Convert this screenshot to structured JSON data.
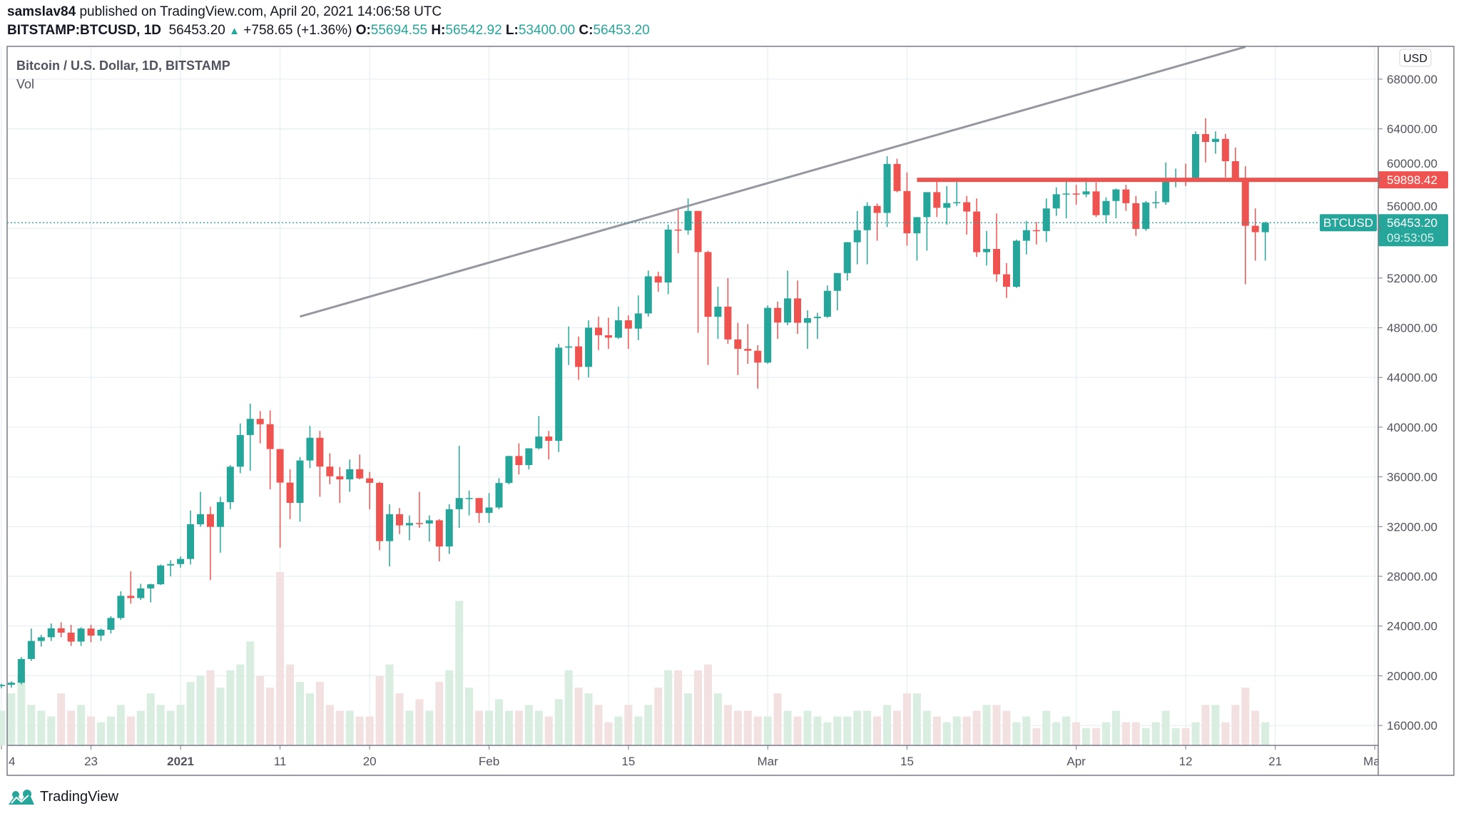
{
  "header": {
    "author": "samslav84",
    "published": "published on TradingView.com, April 20, 2021 14:06:58 UTC",
    "symbol": "BITSTAMP:BTCUSD, 1D",
    "last": "56453.20",
    "change": "+758.65 (+1.36%)",
    "o_label": "O:",
    "o": "55694.55",
    "h_label": "H:",
    "h": "56542.92",
    "l_label": "L:",
    "l": "53400.00",
    "c_label": "C:",
    "c": "56453.20"
  },
  "legend": {
    "title": "Bitcoin / U.S. Dollar, 1D, BITSTAMP",
    "vol": "Vol"
  },
  "brand": "TradingView",
  "colors": {
    "up": "#26a69a",
    "down": "#ef5350",
    "vol_up": "#d9eee0",
    "vol_down": "#f3e0e0",
    "trendline": "#9598a1",
    "grid": "#e8eff3"
  },
  "chart_data": {
    "type": "candlestick",
    "title": "Bitcoin / U.S. Dollar, 1D, BITSTAMP",
    "currency": "USD",
    "ylim": [
      14000,
      70000
    ],
    "y_ticks": [
      "68000.00",
      "64000.00",
      "60000.00",
      "56000.00",
      "52000.00",
      "48000.00",
      "44000.00",
      "40000.00",
      "36000.00",
      "32000.00",
      "28000.00",
      "24000.00",
      "20000.00",
      "16000.00"
    ],
    "x_ticks": [
      {
        "date": "2020-12-14",
        "label": "4"
      },
      {
        "date": "2020-12-23",
        "label": "23"
      },
      {
        "date": "2021-01-01",
        "label": "2021",
        "bold": true
      },
      {
        "date": "2021-01-11",
        "label": "11"
      },
      {
        "date": "2021-01-20",
        "label": "20"
      },
      {
        "date": "2021-02-01",
        "label": "Feb"
      },
      {
        "date": "2021-02-15",
        "label": "15"
      },
      {
        "date": "2021-03-01",
        "label": "Mar"
      },
      {
        "date": "2021-03-15",
        "label": "15"
      },
      {
        "date": "2021-04-01",
        "label": "Apr"
      },
      {
        "date": "2021-04-12",
        "label": "12"
      },
      {
        "date": "2021-04-21",
        "label": "21"
      },
      {
        "date": "2021-05-01",
        "label": "May"
      }
    ],
    "grid": true,
    "last_price_label": {
      "symbol": "BTCUSD",
      "price": "56453.20",
      "countdown": "09:53:05"
    },
    "horizontal_line": {
      "price": 59898.42,
      "label": "59898.42",
      "from": "2021-03-16"
    },
    "trendline": {
      "from": {
        "date": "2021-01-13",
        "price": 48900
      },
      "to": {
        "date": "2021-04-18",
        "price": 70600
      }
    },
    "candles_columns": [
      "date",
      "open",
      "high",
      "low",
      "close",
      "volume"
    ],
    "candles": [
      [
        "2020-12-14",
        19170,
        19350,
        19000,
        19270,
        6
      ],
      [
        "2020-12-15",
        19270,
        19560,
        19050,
        19440,
        9
      ],
      [
        "2020-12-16",
        19440,
        21500,
        19300,
        21350,
        12
      ],
      [
        "2020-12-17",
        21350,
        23800,
        21200,
        22800,
        7
      ],
      [
        "2020-12-18",
        22800,
        23300,
        22350,
        23100,
        6
      ],
      [
        "2020-12-19",
        23100,
        24200,
        22800,
        23820,
        5
      ],
      [
        "2020-12-20",
        23820,
        24300,
        23100,
        23470,
        9
      ],
      [
        "2020-12-21",
        23470,
        24100,
        22400,
        22750,
        6
      ],
      [
        "2020-12-22",
        22750,
        23900,
        22400,
        23800,
        7
      ],
      [
        "2020-12-23",
        23800,
        24100,
        22700,
        23230,
        5
      ],
      [
        "2020-12-24",
        23230,
        23800,
        22800,
        23700,
        4
      ],
      [
        "2020-12-25",
        23700,
        24800,
        23400,
        24650,
        5
      ],
      [
        "2020-12-26",
        24650,
        26800,
        24500,
        26430,
        7
      ],
      [
        "2020-12-27",
        26430,
        28400,
        25800,
        26250,
        5
      ],
      [
        "2020-12-28",
        26250,
        27400,
        26100,
        27030,
        6
      ],
      [
        "2020-12-29",
        27030,
        27400,
        25900,
        27360,
        9
      ],
      [
        "2020-12-30",
        27360,
        28950,
        27300,
        28870,
        7
      ],
      [
        "2020-12-31",
        28870,
        29300,
        28000,
        28990,
        6
      ],
      [
        "2021-01-01",
        28990,
        29600,
        28700,
        29400,
        7
      ],
      [
        "2021-01-02",
        29400,
        33300,
        28950,
        32190,
        11
      ],
      [
        "2021-01-03",
        32190,
        34800,
        32000,
        33000,
        12
      ],
      [
        "2021-01-04",
        33000,
        33600,
        27700,
        31980,
        13
      ],
      [
        "2021-01-05",
        31980,
        34400,
        29900,
        33970,
        10
      ],
      [
        "2021-01-06",
        33970,
        36950,
        33400,
        36820,
        13
      ],
      [
        "2021-01-07",
        36820,
        40300,
        36300,
        39370,
        14
      ],
      [
        "2021-01-08",
        39370,
        41900,
        36500,
        40670,
        18
      ],
      [
        "2021-01-09",
        40670,
        41300,
        38700,
        40240,
        12
      ],
      [
        "2021-01-10",
        40240,
        41350,
        35000,
        38240,
        10
      ],
      [
        "2021-01-11",
        38240,
        38250,
        30300,
        35540,
        30
      ],
      [
        "2021-01-12",
        35540,
        36600,
        32600,
        33910,
        14
      ],
      [
        "2021-01-13",
        33910,
        37600,
        32400,
        37320,
        11
      ],
      [
        "2021-01-14",
        37320,
        40100,
        36700,
        39150,
        9
      ],
      [
        "2021-01-15",
        39150,
        39700,
        34400,
        36830,
        11
      ],
      [
        "2021-01-16",
        36830,
        37900,
        35400,
        36050,
        7
      ],
      [
        "2021-01-17",
        36050,
        36800,
        33900,
        35800,
        6
      ],
      [
        "2021-01-18",
        35800,
        37400,
        34800,
        36620,
        6
      ],
      [
        "2021-01-19",
        36620,
        37800,
        35800,
        35880,
        5
      ],
      [
        "2021-01-20",
        35880,
        36400,
        33400,
        35520,
        5
      ],
      [
        "2021-01-21",
        35520,
        35600,
        30100,
        30830,
        12
      ],
      [
        "2021-01-22",
        30830,
        33800,
        28800,
        33000,
        14
      ],
      [
        "2021-01-23",
        33000,
        33500,
        31400,
        32100,
        9
      ],
      [
        "2021-01-24",
        32100,
        32900,
        30900,
        32290,
        6
      ],
      [
        "2021-01-25",
        32290,
        34800,
        31900,
        32250,
        8
      ],
      [
        "2021-01-26",
        32250,
        32900,
        30800,
        32510,
        6
      ],
      [
        "2021-01-27",
        32510,
        32600,
        29200,
        30400,
        11
      ],
      [
        "2021-01-28",
        30400,
        33800,
        29800,
        33400,
        13
      ],
      [
        "2021-01-29",
        33400,
        38500,
        31900,
        34300,
        25
      ],
      [
        "2021-01-30",
        34300,
        34900,
        32900,
        34300,
        10
      ],
      [
        "2021-01-31",
        34300,
        34300,
        32300,
        33100,
        6
      ],
      [
        "2021-02-01",
        33100,
        34700,
        32300,
        33540,
        6
      ],
      [
        "2021-02-02",
        33540,
        35900,
        33400,
        35510,
        8
      ],
      [
        "2021-02-03",
        35510,
        37700,
        35400,
        37680,
        6
      ],
      [
        "2021-02-04",
        37680,
        38700,
        36200,
        36950,
        6
      ],
      [
        "2021-02-05",
        36950,
        38300,
        36600,
        38300,
        7
      ],
      [
        "2021-02-06",
        38300,
        40900,
        38200,
        39250,
        6
      ],
      [
        "2021-02-07",
        39250,
        39700,
        37400,
        38900,
        5
      ],
      [
        "2021-02-08",
        38900,
        46700,
        38000,
        46400,
        8
      ],
      [
        "2021-02-09",
        46400,
        48100,
        45000,
        46500,
        13
      ],
      [
        "2021-02-10",
        46500,
        47300,
        43800,
        44850,
        10
      ],
      [
        "2021-02-11",
        44850,
        48600,
        44000,
        48010,
        9
      ],
      [
        "2021-02-12",
        48010,
        48900,
        46200,
        47400,
        7
      ],
      [
        "2021-02-13",
        47400,
        48800,
        46300,
        47200,
        4
      ],
      [
        "2021-02-14",
        47200,
        49700,
        47100,
        48600,
        5
      ],
      [
        "2021-02-15",
        48600,
        49000,
        46300,
        47930,
        7
      ],
      [
        "2021-02-16",
        47930,
        50600,
        47000,
        49150,
        5
      ],
      [
        "2021-02-17",
        49150,
        52600,
        48900,
        52140,
        7
      ],
      [
        "2021-02-18",
        52140,
        52500,
        50900,
        51640,
        10
      ],
      [
        "2021-02-19",
        51640,
        56300,
        50700,
        55900,
        13
      ],
      [
        "2021-02-20",
        55900,
        57500,
        54000,
        55840,
        13
      ],
      [
        "2021-02-21",
        55840,
        58400,
        55500,
        57400,
        9
      ],
      [
        "2021-02-22",
        57400,
        57400,
        47600,
        54090,
        13
      ],
      [
        "2021-02-23",
        54090,
        54200,
        45000,
        48880,
        14
      ],
      [
        "2021-02-24",
        48880,
        51300,
        47100,
        49700,
        9
      ],
      [
        "2021-02-25",
        49700,
        52000,
        46700,
        47060,
        7
      ],
      [
        "2021-02-26",
        47060,
        48400,
        44200,
        46300,
        6
      ],
      [
        "2021-02-27",
        46300,
        48300,
        45100,
        46150,
        6
      ],
      [
        "2021-02-28",
        46150,
        46600,
        43100,
        45200,
        5
      ],
      [
        "2021-03-01",
        45200,
        49800,
        45100,
        49600,
        5
      ],
      [
        "2021-03-02",
        49600,
        50100,
        47100,
        48420,
        9
      ],
      [
        "2021-03-03",
        48420,
        52600,
        48200,
        50360,
        6
      ],
      [
        "2021-03-04",
        50360,
        51800,
        47500,
        48400,
        5
      ],
      [
        "2021-03-05",
        48400,
        49400,
        46300,
        48770,
        6
      ],
      [
        "2021-03-06",
        48770,
        49200,
        47100,
        48880,
        5
      ],
      [
        "2021-03-07",
        48880,
        51400,
        48800,
        50970,
        4
      ],
      [
        "2021-03-08",
        50970,
        52400,
        49400,
        52400,
        5
      ],
      [
        "2021-03-09",
        52400,
        54900,
        51800,
        54880,
        5
      ],
      [
        "2021-03-10",
        54880,
        57400,
        53100,
        55850,
        6
      ],
      [
        "2021-03-11",
        55850,
        58100,
        53100,
        57800,
        6
      ],
      [
        "2021-03-12",
        57800,
        58000,
        55000,
        57240,
        5
      ],
      [
        "2021-03-13",
        57240,
        61800,
        56100,
        61180,
        7
      ],
      [
        "2021-03-14",
        61180,
        61600,
        58900,
        59000,
        6
      ],
      [
        "2021-03-15",
        59000,
        60500,
        54600,
        55600,
        9
      ],
      [
        "2021-03-16",
        55600,
        56900,
        53400,
        56900,
        9
      ],
      [
        "2021-03-17",
        56900,
        58900,
        54200,
        58910,
        6
      ],
      [
        "2021-03-18",
        58910,
        60000,
        56900,
        57650,
        5
      ],
      [
        "2021-03-19",
        57650,
        59400,
        56300,
        58030,
        4
      ],
      [
        "2021-03-20",
        58030,
        59900,
        57800,
        58100,
        5
      ],
      [
        "2021-03-21",
        58100,
        58600,
        55500,
        57350,
        5
      ],
      [
        "2021-03-22",
        57350,
        58400,
        53700,
        54080,
        6
      ],
      [
        "2021-03-23",
        54080,
        55800,
        53000,
        54340,
        7
      ],
      [
        "2021-03-24",
        54340,
        57200,
        51700,
        52300,
        7
      ],
      [
        "2021-03-25",
        52300,
        53200,
        50400,
        51300,
        6
      ],
      [
        "2021-03-26",
        51300,
        55100,
        51200,
        55000,
        4
      ],
      [
        "2021-03-27",
        55000,
        56600,
        53900,
        55850,
        5
      ],
      [
        "2021-03-28",
        55850,
        56500,
        54700,
        55780,
        3
      ],
      [
        "2021-03-29",
        55780,
        58400,
        54900,
        57600,
        6
      ],
      [
        "2021-03-30",
        57600,
        59300,
        57000,
        58740,
        4
      ],
      [
        "2021-03-31",
        58740,
        59800,
        56800,
        58800,
        5
      ],
      [
        "2021-04-01",
        58800,
        59500,
        57900,
        58730,
        4
      ],
      [
        "2021-04-02",
        58730,
        60000,
        58500,
        58970,
        3
      ],
      [
        "2021-04-03",
        58970,
        59700,
        56900,
        57060,
        3
      ],
      [
        "2021-04-04",
        57060,
        58500,
        56400,
        58200,
        4
      ],
      [
        "2021-04-05",
        58200,
        59200,
        56800,
        59130,
        6
      ],
      [
        "2021-04-06",
        59130,
        59500,
        57400,
        58020,
        4
      ],
      [
        "2021-04-07",
        58020,
        58600,
        55400,
        55950,
        4
      ],
      [
        "2021-04-08",
        55950,
        58200,
        55800,
        58080,
        3
      ],
      [
        "2021-04-09",
        58080,
        59000,
        57600,
        58100,
        4
      ],
      [
        "2021-04-10",
        58100,
        61300,
        57900,
        59770,
        6
      ],
      [
        "2021-04-11",
        59770,
        60800,
        59300,
        59980,
        3
      ],
      [
        "2021-04-12",
        59980,
        61200,
        59400,
        59850,
        3
      ],
      [
        "2021-04-13",
        59850,
        63800,
        59800,
        63580,
        4
      ],
      [
        "2021-04-14",
        63580,
        64860,
        61300,
        62950,
        7
      ],
      [
        "2021-04-15",
        62950,
        63800,
        62000,
        63200,
        7
      ],
      [
        "2021-04-16",
        63200,
        63600,
        60100,
        61400,
        4
      ],
      [
        "2021-04-17",
        61400,
        62500,
        59800,
        60050,
        7
      ],
      [
        "2021-04-18",
        60050,
        61000,
        51500,
        56200,
        10
      ],
      [
        "2021-04-19",
        56200,
        57600,
        53400,
        55690,
        6
      ],
      [
        "2021-04-20",
        55690,
        56540,
        53400,
        56453.2,
        4
      ]
    ]
  }
}
